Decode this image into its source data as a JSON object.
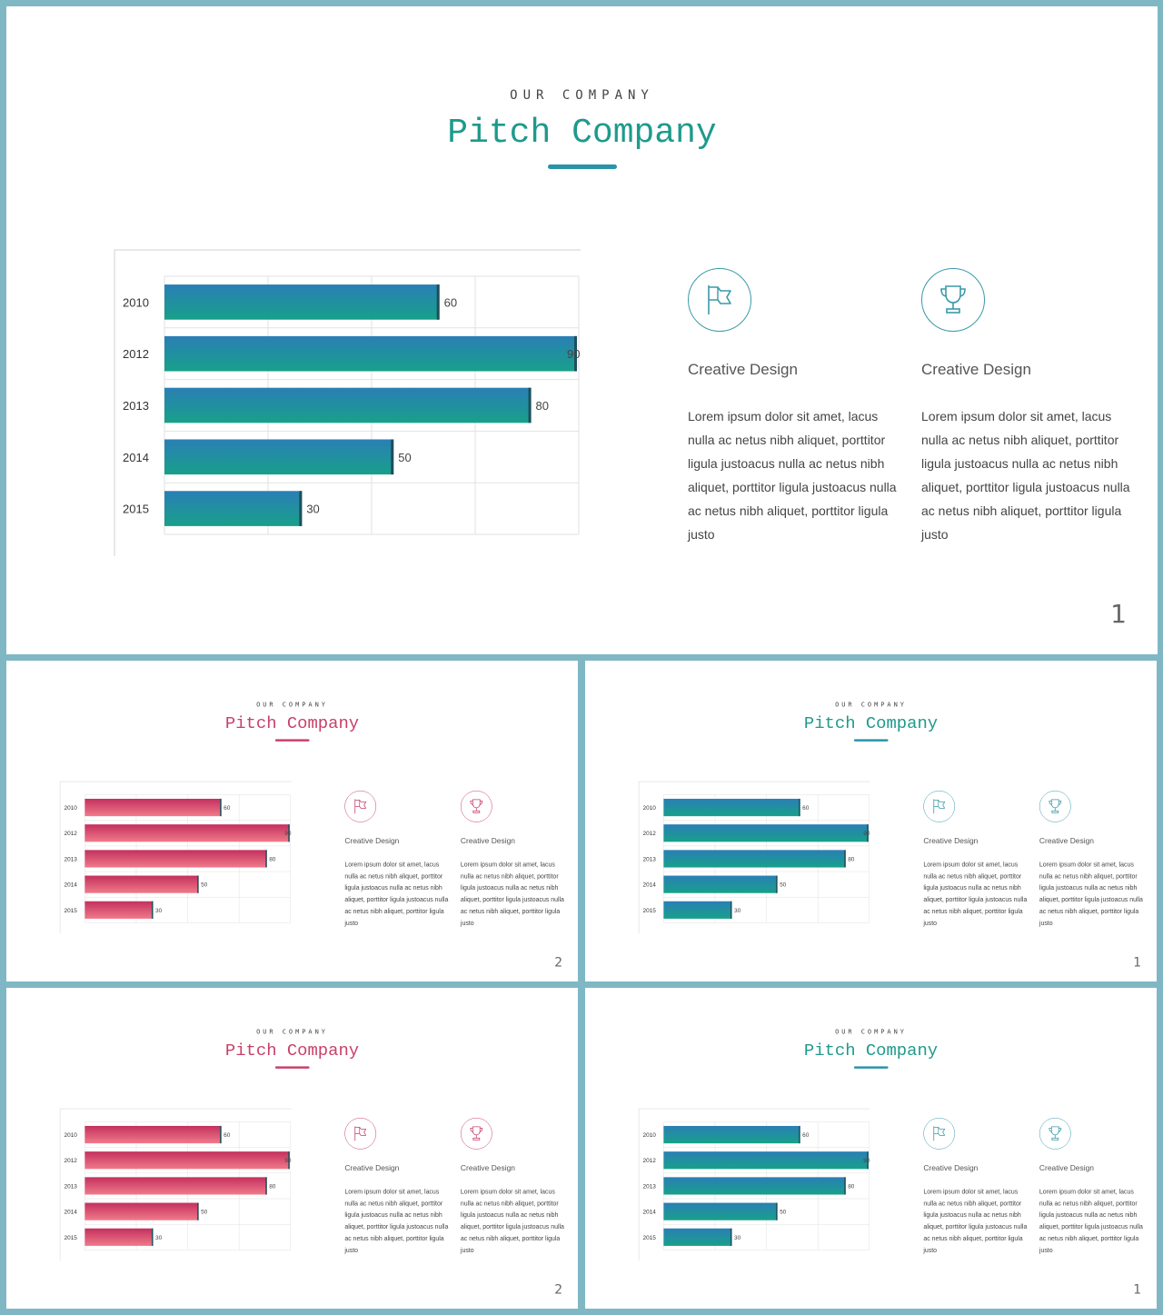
{
  "slides": [
    {
      "eyebrow": "OUR COMPANY",
      "title": "Pitch Company",
      "page": "1",
      "theme": "teal"
    },
    {
      "eyebrow": "OUR COMPANY",
      "title": "Pitch Company",
      "page": "2",
      "theme": "pink"
    },
    {
      "eyebrow": "OUR COMPANY",
      "title": "Pitch Company",
      "page": "1",
      "theme": "teal"
    },
    {
      "eyebrow": "OUR COMPANY",
      "title": "Pitch Company",
      "page": "2",
      "theme": "pink"
    },
    {
      "eyebrow": "OUR COMPANY",
      "title": "Pitch Company",
      "page": "1",
      "theme": "teal"
    }
  ],
  "features": [
    {
      "icon": "flag-icon",
      "title": "Creative Design",
      "body": "Lorem ipsum dolor sit amet, lacus nulla ac netus nibh aliquet, porttitor ligula justoacus nulla ac netus nibh aliquet, porttitor ligula justoacus nulla ac netus nibh aliquet, porttitor ligula justo"
    },
    {
      "icon": "trophy-icon",
      "title": "Creative Design",
      "body": "Lorem ipsum dolor sit amet, lacus nulla ac netus nibh aliquet, porttitor ligula justoacus nulla ac netus nibh aliquet, porttitor ligula justoacus nulla ac netus nibh aliquet, porttitor ligula justo"
    }
  ],
  "themes": {
    "teal": {
      "title_color": "#1e9a8c",
      "accent": "#2a93a8",
      "bar_top": "#2a7fb5",
      "bar_bottom": "#18a08a",
      "icon_color": "#3a9aa8"
    },
    "pink": {
      "title_color": "#c9406a",
      "accent": "#c9406a",
      "bar_top": "#c4305e",
      "bar_bottom": "#f07a8a",
      "icon_color": "#c9406a"
    }
  },
  "chart_data": {
    "type": "bar",
    "orientation": "horizontal",
    "categories": [
      "2010",
      "2012",
      "2013",
      "2014",
      "2015"
    ],
    "values": [
      60,
      90,
      80,
      50,
      30
    ],
    "xlim": [
      0,
      90
    ],
    "grid": true
  }
}
